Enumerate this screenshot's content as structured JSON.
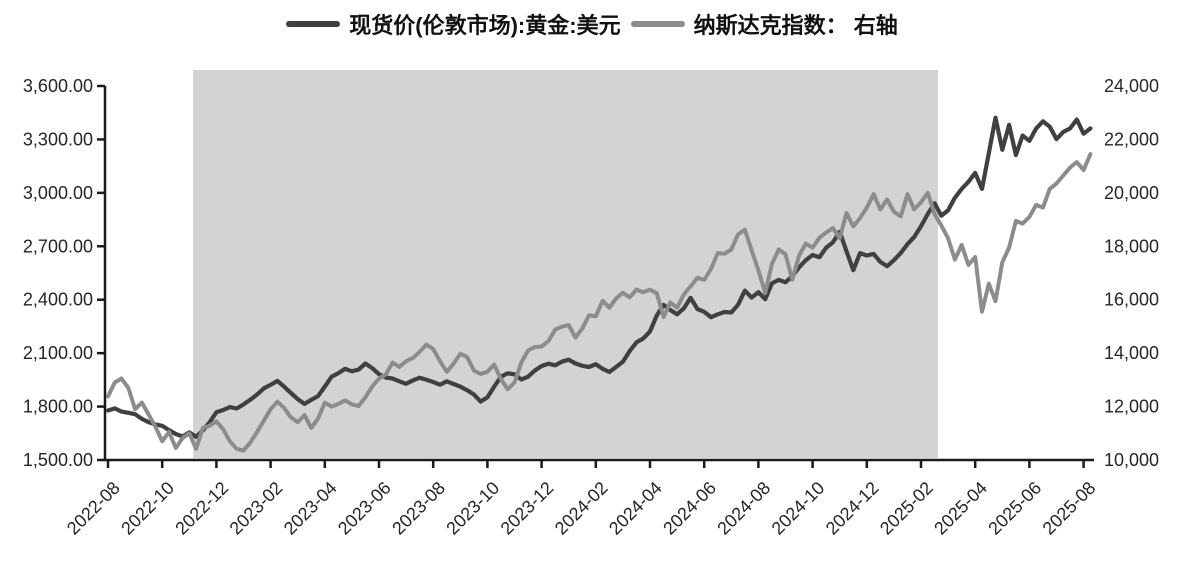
{
  "chart_data": {
    "type": "line",
    "title": "",
    "legend_position": "top-center",
    "grid": false,
    "x_axis": {
      "unit": "months since 2022-08 (each tick = 2 months)",
      "tick_labels": [
        "2022-08",
        "2022-10",
        "2022-12",
        "2023-02",
        "2023-04",
        "2023-06",
        "2023-08",
        "2023-10",
        "2023-12",
        "2024-02",
        "2024-04",
        "2024-06",
        "2024-08",
        "2024-10",
        "2024-12",
        "2025-02",
        "2025-04",
        "2025-06",
        "2025-08"
      ]
    },
    "left_axis": {
      "min": 1500,
      "max": 3600,
      "step": 300,
      "tick_labels": [
        "1,500.00",
        "1,800.00",
        "2,100.00",
        "2,400.00",
        "2,700.00",
        "3,000.00",
        "3,300.00",
        "3,600.00"
      ]
    },
    "right_axis": {
      "min": 10000,
      "max": 24000,
      "step": 2000,
      "tick_labels": [
        "10,000",
        "12,000",
        "14,000",
        "16,000",
        "18,000",
        "20,000",
        "22,000",
        "24,000"
      ]
    },
    "highlight_region": {
      "from_month": 3.14,
      "to_month": 30.63,
      "approx_span": "2022-11 to 2025-02",
      "color": "#d3d3d3"
    },
    "axis_color": "#1a1a1a",
    "label_color": "#262626",
    "series": [
      {
        "name": "现货价(伦敦市场):黄金:美元",
        "axis": "left",
        "color": "#404040",
        "stroke_width": 4.2,
        "points": [
          [
            0,
            1778
          ],
          [
            0.25,
            1790
          ],
          [
            0.5,
            1772
          ],
          [
            0.75,
            1765
          ],
          [
            1,
            1757
          ],
          [
            1.25,
            1731
          ],
          [
            1.5,
            1712
          ],
          [
            1.75,
            1700
          ],
          [
            2,
            1692
          ],
          [
            2.25,
            1668
          ],
          [
            2.5,
            1646
          ],
          [
            2.75,
            1632
          ],
          [
            3,
            1655
          ],
          [
            3.25,
            1630
          ],
          [
            3.5,
            1666
          ],
          [
            3.75,
            1712
          ],
          [
            4,
            1768
          ],
          [
            4.25,
            1781
          ],
          [
            4.5,
            1797
          ],
          [
            4.75,
            1789
          ],
          [
            5,
            1812
          ],
          [
            5.25,
            1838
          ],
          [
            5.5,
            1868
          ],
          [
            5.75,
            1902
          ],
          [
            6,
            1922
          ],
          [
            6.25,
            1944
          ],
          [
            6.5,
            1912
          ],
          [
            6.75,
            1876
          ],
          [
            7,
            1842
          ],
          [
            7.25,
            1815
          ],
          [
            7.5,
            1838
          ],
          [
            7.75,
            1858
          ],
          [
            8,
            1912
          ],
          [
            8.25,
            1968
          ],
          [
            8.5,
            1988
          ],
          [
            8.75,
            2012
          ],
          [
            9,
            1998
          ],
          [
            9.25,
            2008
          ],
          [
            9.5,
            2042
          ],
          [
            9.75,
            2016
          ],
          [
            10,
            1982
          ],
          [
            10.25,
            1963
          ],
          [
            10.5,
            1957
          ],
          [
            10.75,
            1942
          ],
          [
            11,
            1928
          ],
          [
            11.25,
            1947
          ],
          [
            11.5,
            1962
          ],
          [
            11.75,
            1951
          ],
          [
            12,
            1938
          ],
          [
            12.25,
            1923
          ],
          [
            12.5,
            1942
          ],
          [
            12.75,
            1927
          ],
          [
            13,
            1912
          ],
          [
            13.25,
            1892
          ],
          [
            13.5,
            1868
          ],
          [
            13.75,
            1828
          ],
          [
            14,
            1852
          ],
          [
            14.25,
            1912
          ],
          [
            14.5,
            1968
          ],
          [
            14.75,
            1987
          ],
          [
            15,
            1981
          ],
          [
            15.25,
            1952
          ],
          [
            15.5,
            1968
          ],
          [
            15.75,
            2002
          ],
          [
            16,
            2028
          ],
          [
            16.25,
            2041
          ],
          [
            16.5,
            2032
          ],
          [
            16.75,
            2052
          ],
          [
            17,
            2063
          ],
          [
            17.25,
            2042
          ],
          [
            17.5,
            2029
          ],
          [
            17.75,
            2022
          ],
          [
            18,
            2038
          ],
          [
            18.25,
            2012
          ],
          [
            18.5,
            1994
          ],
          [
            18.75,
            2022
          ],
          [
            19,
            2052
          ],
          [
            19.25,
            2112
          ],
          [
            19.5,
            2161
          ],
          [
            19.75,
            2182
          ],
          [
            20,
            2222
          ],
          [
            20.25,
            2312
          ],
          [
            20.5,
            2371
          ],
          [
            20.75,
            2342
          ],
          [
            21,
            2318
          ],
          [
            21.25,
            2352
          ],
          [
            21.5,
            2411
          ],
          [
            21.75,
            2348
          ],
          [
            22,
            2332
          ],
          [
            22.25,
            2302
          ],
          [
            22.5,
            2318
          ],
          [
            22.75,
            2331
          ],
          [
            23,
            2328
          ],
          [
            23.25,
            2372
          ],
          [
            23.5,
            2451
          ],
          [
            23.75,
            2412
          ],
          [
            24,
            2442
          ],
          [
            24.25,
            2403
          ],
          [
            24.5,
            2492
          ],
          [
            24.75,
            2511
          ],
          [
            25,
            2498
          ],
          [
            25.25,
            2532
          ],
          [
            25.5,
            2582
          ],
          [
            25.75,
            2622
          ],
          [
            26,
            2651
          ],
          [
            26.25,
            2638
          ],
          [
            26.5,
            2692
          ],
          [
            26.75,
            2722
          ],
          [
            27,
            2782
          ],
          [
            27.25,
            2672
          ],
          [
            27.5,
            2566
          ],
          [
            27.75,
            2662
          ],
          [
            28,
            2648
          ],
          [
            28.25,
            2657
          ],
          [
            28.5,
            2612
          ],
          [
            28.75,
            2588
          ],
          [
            29,
            2622
          ],
          [
            29.25,
            2662
          ],
          [
            29.5,
            2712
          ],
          [
            29.75,
            2752
          ],
          [
            30,
            2812
          ],
          [
            30.25,
            2882
          ],
          [
            30.5,
            2942
          ],
          [
            30.75,
            2872
          ],
          [
            31,
            2902
          ],
          [
            31.25,
            2972
          ],
          [
            31.5,
            3022
          ],
          [
            31.75,
            3062
          ],
          [
            32,
            3112
          ],
          [
            32.25,
            3022
          ],
          [
            32.5,
            3222
          ],
          [
            32.75,
            3422
          ],
          [
            33,
            3242
          ],
          [
            33.25,
            3382
          ],
          [
            33.5,
            3212
          ],
          [
            33.75,
            3322
          ],
          [
            34,
            3292
          ],
          [
            34.25,
            3362
          ],
          [
            34.5,
            3402
          ],
          [
            34.75,
            3372
          ],
          [
            35,
            3302
          ],
          [
            35.25,
            3342
          ],
          [
            35.5,
            3362
          ],
          [
            35.75,
            3412
          ],
          [
            36,
            3332
          ],
          [
            36.25,
            3362
          ]
        ]
      },
      {
        "name": "纳斯达克指数： 右轴",
        "axis": "right",
        "color": "#8c8c8c",
        "stroke_width": 4.0,
        "points": [
          [
            0,
            12380
          ],
          [
            0.25,
            12900
          ],
          [
            0.5,
            13050
          ],
          [
            0.75,
            12700
          ],
          [
            1,
            11900
          ],
          [
            1.25,
            12150
          ],
          [
            1.5,
            11700
          ],
          [
            1.75,
            11250
          ],
          [
            2,
            10700
          ],
          [
            2.25,
            11050
          ],
          [
            2.5,
            10450
          ],
          [
            2.75,
            10820
          ],
          [
            3,
            11000
          ],
          [
            3.25,
            10420
          ],
          [
            3.5,
            11200
          ],
          [
            3.75,
            11280
          ],
          [
            4,
            11450
          ],
          [
            4.25,
            11150
          ],
          [
            4.5,
            10700
          ],
          [
            4.75,
            10420
          ],
          [
            5,
            10350
          ],
          [
            5.25,
            10650
          ],
          [
            5.5,
            11050
          ],
          [
            5.75,
            11470
          ],
          [
            6,
            11900
          ],
          [
            6.25,
            12180
          ],
          [
            6.5,
            11950
          ],
          [
            6.75,
            11600
          ],
          [
            7,
            11420
          ],
          [
            7.25,
            11680
          ],
          [
            7.5,
            11200
          ],
          [
            7.75,
            11550
          ],
          [
            8,
            12150
          ],
          [
            8.25,
            12000
          ],
          [
            8.5,
            12100
          ],
          [
            8.75,
            12230
          ],
          [
            9,
            12080
          ],
          [
            9.25,
            12020
          ],
          [
            9.5,
            12350
          ],
          [
            9.75,
            12750
          ],
          [
            10,
            13050
          ],
          [
            10.25,
            13200
          ],
          [
            10.5,
            13650
          ],
          [
            10.75,
            13480
          ],
          [
            11,
            13700
          ],
          [
            11.25,
            13820
          ],
          [
            11.5,
            14050
          ],
          [
            11.75,
            14320
          ],
          [
            12,
            14150
          ],
          [
            12.25,
            13700
          ],
          [
            12.5,
            13300
          ],
          [
            12.75,
            13600
          ],
          [
            13,
            13980
          ],
          [
            13.25,
            13850
          ],
          [
            13.5,
            13350
          ],
          [
            13.75,
            13220
          ],
          [
            14,
            13300
          ],
          [
            14.25,
            13570
          ],
          [
            14.5,
            13020
          ],
          [
            14.75,
            12650
          ],
          [
            15,
            12900
          ],
          [
            15.25,
            13650
          ],
          [
            15.5,
            14100
          ],
          [
            15.75,
            14230
          ],
          [
            16,
            14250
          ],
          [
            16.25,
            14450
          ],
          [
            16.5,
            14880
          ],
          [
            16.75,
            14990
          ],
          [
            17,
            15050
          ],
          [
            17.25,
            14580
          ],
          [
            17.5,
            14920
          ],
          [
            17.75,
            15420
          ],
          [
            18,
            15380
          ],
          [
            18.25,
            15960
          ],
          [
            18.5,
            15700
          ],
          [
            18.75,
            16050
          ],
          [
            19,
            16260
          ],
          [
            19.25,
            16090
          ],
          [
            19.5,
            16380
          ],
          [
            19.75,
            16280
          ],
          [
            20,
            16380
          ],
          [
            20.25,
            16240
          ],
          [
            20.5,
            15350
          ],
          [
            20.75,
            15900
          ],
          [
            21,
            15700
          ],
          [
            21.25,
            16200
          ],
          [
            21.5,
            16500
          ],
          [
            21.75,
            16820
          ],
          [
            22,
            16740
          ],
          [
            22.25,
            17150
          ],
          [
            22.5,
            17750
          ],
          [
            22.75,
            17720
          ],
          [
            23,
            17880
          ],
          [
            23.25,
            18450
          ],
          [
            23.5,
            18620
          ],
          [
            23.75,
            17850
          ],
          [
            24,
            17100
          ],
          [
            24.25,
            16250
          ],
          [
            24.5,
            17350
          ],
          [
            24.75,
            17880
          ],
          [
            25,
            17700
          ],
          [
            25.25,
            16750
          ],
          [
            25.5,
            17650
          ],
          [
            25.75,
            18100
          ],
          [
            26,
            17950
          ],
          [
            26.25,
            18320
          ],
          [
            26.5,
            18520
          ],
          [
            26.75,
            18680
          ],
          [
            27,
            18300
          ],
          [
            27.25,
            19250
          ],
          [
            27.5,
            18750
          ],
          [
            27.75,
            19050
          ],
          [
            28,
            19450
          ],
          [
            28.25,
            19950
          ],
          [
            28.5,
            19380
          ],
          [
            28.75,
            19750
          ],
          [
            29,
            19300
          ],
          [
            29.25,
            19120
          ],
          [
            29.5,
            19950
          ],
          [
            29.75,
            19380
          ],
          [
            30,
            19650
          ],
          [
            30.25,
            20000
          ],
          [
            30.5,
            19200
          ],
          [
            30.75,
            18780
          ],
          [
            31,
            18300
          ],
          [
            31.25,
            17500
          ],
          [
            31.5,
            18050
          ],
          [
            31.75,
            17300
          ],
          [
            32,
            17600
          ],
          [
            32.25,
            15550
          ],
          [
            32.5,
            16600
          ],
          [
            32.75,
            15950
          ],
          [
            33,
            17400
          ],
          [
            33.25,
            17950
          ],
          [
            33.5,
            18950
          ],
          [
            33.75,
            18850
          ],
          [
            34,
            19100
          ],
          [
            34.25,
            19550
          ],
          [
            34.5,
            19450
          ],
          [
            34.75,
            20150
          ],
          [
            35,
            20350
          ],
          [
            35.25,
            20650
          ],
          [
            35.5,
            20950
          ],
          [
            35.75,
            21150
          ],
          [
            36,
            20850
          ],
          [
            36.25,
            21450
          ]
        ]
      }
    ]
  }
}
